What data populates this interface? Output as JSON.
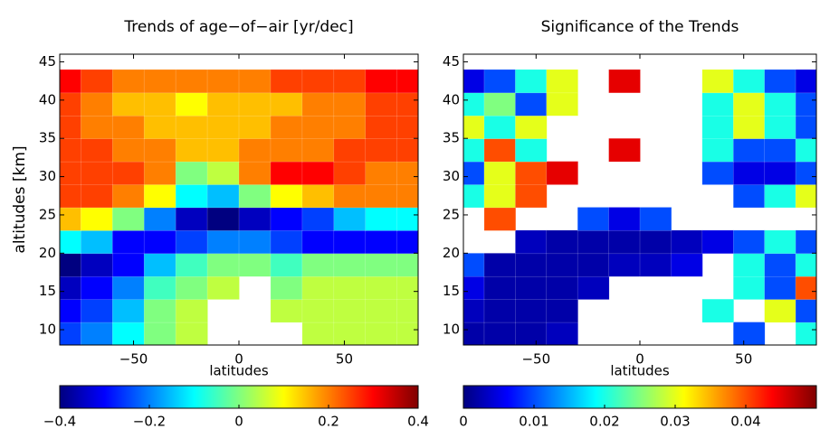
{
  "chart_data": [
    {
      "type": "heatmap",
      "title": "Trends of age−of−air [yr/dec]",
      "xlabel": "latitudes",
      "ylabel": "altitudes [km]",
      "colormap": "jet",
      "x": [
        -82.5,
        -67.5,
        -52.5,
        -37.5,
        -22.5,
        -7.5,
        7.5,
        22.5,
        37.5,
        52.5,
        67.5,
        82.5
      ],
      "y": [
        9.5,
        12.5,
        15.5,
        18.5,
        21.5,
        24.5,
        27.5,
        30.5,
        33.5,
        36.5,
        39.5,
        42.5
      ],
      "z": [
        [
          -0.25,
          -0.2,
          -0.1,
          0.0,
          0.05,
          null,
          null,
          null,
          0.05,
          0.05,
          0.05,
          0.05
        ],
        [
          -0.3,
          -0.25,
          -0.15,
          0.0,
          0.05,
          null,
          null,
          0.05,
          0.05,
          0.05,
          0.05,
          0.05
        ],
        [
          -0.35,
          -0.3,
          -0.2,
          -0.05,
          0.0,
          0.05,
          null,
          0.0,
          0.05,
          0.05,
          0.05,
          0.05
        ],
        [
          -0.4,
          -0.35,
          -0.3,
          -0.15,
          -0.05,
          0.0,
          0.0,
          -0.05,
          0.0,
          0.0,
          0.0,
          0.0
        ],
        [
          -0.1,
          -0.15,
          -0.3,
          -0.3,
          -0.25,
          -0.2,
          -0.2,
          -0.25,
          -0.3,
          -0.3,
          -0.3,
          -0.3
        ],
        [
          0.15,
          0.1,
          0.0,
          -0.2,
          -0.35,
          -0.4,
          -0.35,
          -0.3,
          -0.25,
          -0.15,
          -0.1,
          -0.1
        ],
        [
          0.25,
          0.25,
          0.2,
          0.1,
          -0.1,
          -0.15,
          0.0,
          0.1,
          0.15,
          0.2,
          0.2,
          0.2
        ],
        [
          0.25,
          0.25,
          0.25,
          0.2,
          0.0,
          0.05,
          0.2,
          0.3,
          0.3,
          0.25,
          0.2,
          0.2
        ],
        [
          0.25,
          0.25,
          0.2,
          0.2,
          0.15,
          0.15,
          0.2,
          0.2,
          0.2,
          0.25,
          0.25,
          0.25
        ],
        [
          0.25,
          0.2,
          0.2,
          0.15,
          0.15,
          0.15,
          0.15,
          0.2,
          0.2,
          0.2,
          0.25,
          0.25
        ],
        [
          0.25,
          0.2,
          0.15,
          0.15,
          0.1,
          0.15,
          0.15,
          0.15,
          0.2,
          0.2,
          0.25,
          0.25
        ],
        [
          0.3,
          0.25,
          0.2,
          0.2,
          0.2,
          0.2,
          0.2,
          0.25,
          0.25,
          0.25,
          0.3,
          0.3
        ]
      ],
      "xlim": [
        -85,
        85
      ],
      "ylim": [
        8,
        46
      ],
      "xticks": [
        {
          "value": -50,
          "label": "−50"
        },
        0,
        50
      ],
      "yticks": [
        10,
        15,
        20,
        25,
        30,
        35,
        40,
        45
      ],
      "clim": [
        -0.4,
        0.4
      ],
      "cticks": [
        {
          "value": -0.4,
          "label": "−0.4"
        },
        {
          "value": -0.2,
          "label": "−0.2"
        },
        0,
        0.2,
        0.4
      ]
    },
    {
      "type": "heatmap",
      "title": "Significance of the Trends",
      "xlabel": "latitudes",
      "colormap": "jet",
      "x": [
        -82.5,
        -67.5,
        -52.5,
        -37.5,
        -22.5,
        -7.5,
        7.5,
        22.5,
        37.5,
        52.5,
        67.5,
        82.5
      ],
      "y": [
        9.5,
        12.5,
        15.5,
        18.5,
        21.5,
        24.5,
        27.5,
        30.5,
        33.5,
        36.5,
        39.5,
        42.5
      ],
      "z": [
        [
          0.002,
          0.002,
          0.002,
          0.003,
          null,
          null,
          null,
          null,
          null,
          0.01,
          null,
          0.02
        ],
        [
          0.003,
          0.002,
          0.002,
          0.002,
          null,
          null,
          null,
          null,
          0.02,
          null,
          0.03,
          0.01
        ],
        [
          0.005,
          0.002,
          0.002,
          0.002,
          0.003,
          null,
          null,
          null,
          null,
          0.02,
          0.01,
          0.04
        ],
        [
          0.01,
          0.002,
          0.002,
          0.002,
          0.002,
          0.003,
          0.003,
          0.005,
          null,
          0.02,
          0.01,
          0.02
        ],
        [
          null,
          null,
          0.003,
          0.002,
          0.002,
          0.002,
          0.002,
          0.003,
          0.005,
          0.01,
          0.02,
          0.01
        ],
        [
          null,
          0.04,
          null,
          null,
          0.01,
          0.005,
          0.01,
          null,
          null,
          null,
          null,
          null
        ],
        [
          0.02,
          0.03,
          0.04,
          null,
          null,
          null,
          null,
          null,
          null,
          0.01,
          0.02,
          0.03
        ],
        [
          0.01,
          0.03,
          0.04,
          0.045,
          null,
          null,
          null,
          null,
          0.01,
          0.005,
          0.005,
          0.01
        ],
        [
          0.02,
          0.04,
          0.02,
          null,
          null,
          0.045,
          null,
          null,
          0.02,
          0.01,
          0.01,
          0.02
        ],
        [
          0.03,
          0.02,
          0.03,
          null,
          null,
          null,
          null,
          null,
          0.02,
          0.03,
          0.02,
          0.01
        ],
        [
          0.02,
          0.025,
          0.01,
          0.03,
          null,
          null,
          null,
          null,
          0.02,
          0.03,
          0.02,
          0.01
        ],
        [
          0.005,
          0.01,
          0.02,
          0.03,
          null,
          0.045,
          null,
          null,
          0.03,
          0.02,
          0.01,
          0.005
        ]
      ],
      "xlim": [
        -85,
        85
      ],
      "ylim": [
        8,
        46
      ],
      "xticks": [
        {
          "value": -50,
          "label": "−50"
        },
        0,
        50
      ],
      "yticks": [
        10,
        15,
        20,
        25,
        30,
        35,
        40,
        45
      ],
      "clim": [
        0,
        0.05
      ],
      "cticks": [
        0,
        0.01,
        0.02,
        0.03,
        0.04
      ]
    }
  ]
}
